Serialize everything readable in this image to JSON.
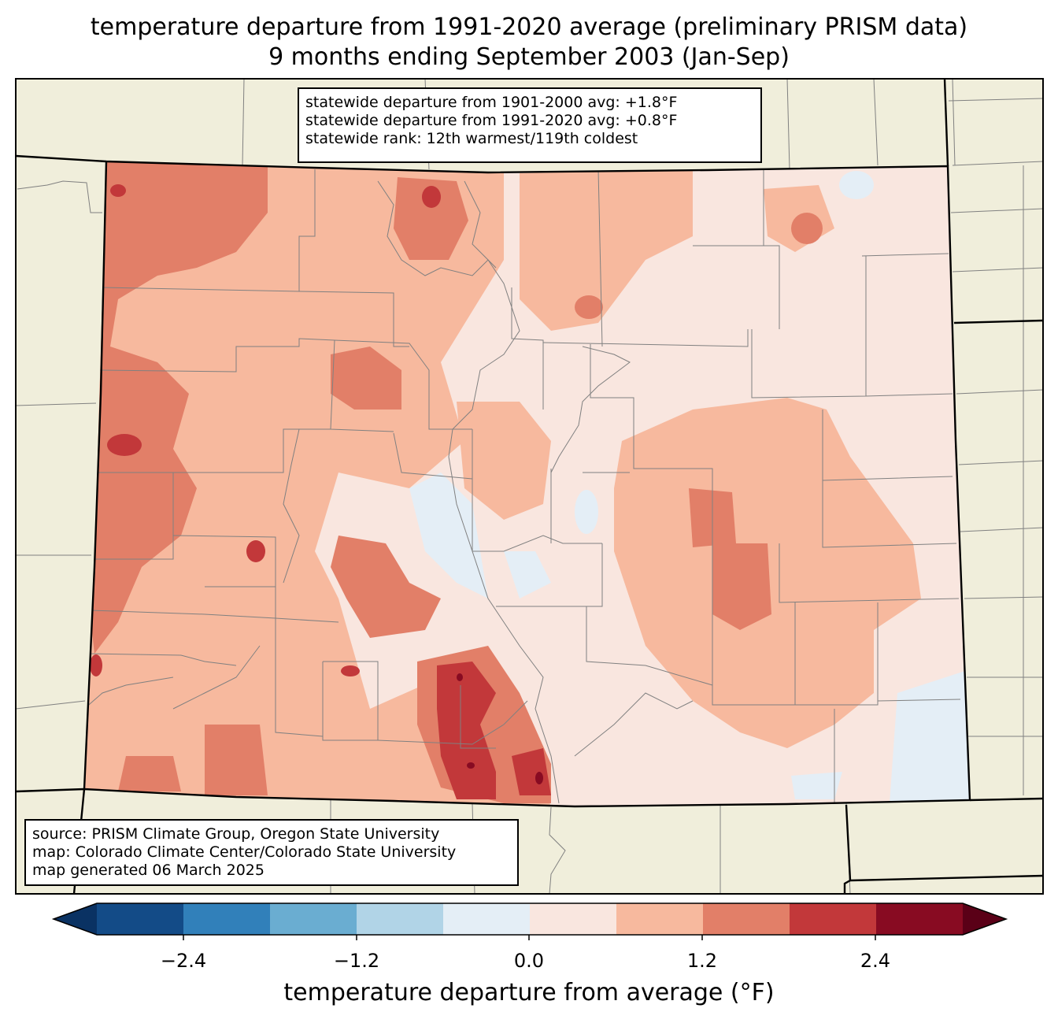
{
  "title": {
    "line1": "temperature departure from 1991-2020 average (preliminary PRISM data)",
    "line2": "9 months ending September 2003 (Jan-Sep)"
  },
  "stats": {
    "line1": "statewide departure from 1901-2000 avg: +1.8°F",
    "line2": "statewide departure from 1991-2020 avg: +0.8°F",
    "line3": "statewide rank: 12th warmest/119th coldest"
  },
  "source": {
    "line1": "source: PRISM Climate Group, Oregon State University",
    "line2": "map: Colorado Climate Center/Colorado State University",
    "line3": "map generated 06 March 2025"
  },
  "colorbar": {
    "label": "temperature departure from average (°F)",
    "ticks": [
      "−2.4",
      "−1.2",
      "0.0",
      "1.2",
      "2.4"
    ],
    "colors": [
      "#0a3263",
      "#134b87",
      "#3180ba",
      "#6aadd1",
      "#b1d4e7",
      "#e4eef6",
      "#f9e6df",
      "#f7b99e",
      "#e27f68",
      "#c2383a",
      "#880b22",
      "#5a0017"
    ]
  },
  "colors": {
    "land": "#f0eedb",
    "lines": "#808080"
  }
}
